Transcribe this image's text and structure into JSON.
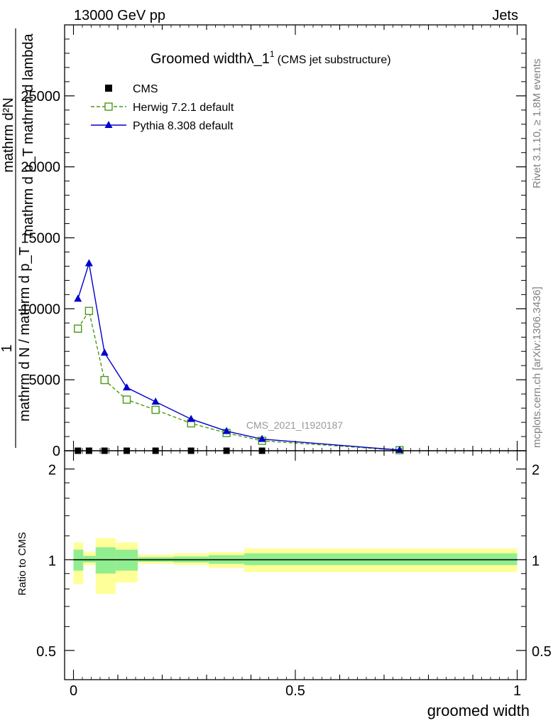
{
  "header": {
    "left_label": "13000 GeV pp",
    "right_label": "Jets"
  },
  "side_labels": {
    "rivet": "Rivet 3.1.10, ≥ 1.8M events",
    "mcplots": "mcplots.cern.ch [arXiv:1306.3436]"
  },
  "analysis_id": "CMS_2021_I1920187",
  "chart_data": [
    {
      "type": "line",
      "title": "Groomed widthλ_1",
      "title_superscript": "1",
      "subtitle": "(CMS jet substructure)",
      "xlabel": "groomed width",
      "ylabel_numerator": "1",
      "ylabel_denominator": "mathrm d N / mathrm d p_T",
      "ylabel_fraction_numerator": "mathrm d²N",
      "ylabel_fraction_denominator": "mathrm d p_T mathrm d lambda",
      "xlim": [
        -0.02,
        1.02
      ],
      "ylim": [
        0,
        30000
      ],
      "yticks": [
        0,
        5000,
        10000,
        15000,
        20000,
        25000
      ],
      "ytick_labels": [
        "0",
        "5000",
        "10000",
        "15000",
        "20000",
        "25000"
      ],
      "legend_position": "top-left",
      "x": [
        0.01,
        0.035,
        0.07,
        0.12,
        0.185,
        0.265,
        0.345,
        0.425,
        0.735
      ],
      "series": [
        {
          "name": "CMS",
          "color": "#000000",
          "marker": "square-filled",
          "values": [
            0,
            0,
            0,
            0,
            0,
            0,
            0,
            0,
            0
          ]
        },
        {
          "name": "Herwig 7.2.1 default",
          "color": "#4a9a14",
          "marker": "square-open",
          "dashed": true,
          "values": [
            8600,
            9850,
            4980,
            3600,
            2880,
            1930,
            1250,
            700,
            40
          ]
        },
        {
          "name": "Pythia 8.308 default",
          "color": "#0000cc",
          "marker": "triangle-filled",
          "dashed": false,
          "values": [
            10700,
            13200,
            6900,
            4450,
            3450,
            2230,
            1380,
            820,
            50
          ]
        }
      ]
    },
    {
      "type": "area",
      "ylabel": "Ratio to CMS",
      "xlim": [
        -0.02,
        1.02
      ],
      "ylim": [
        0.4,
        2.3
      ],
      "yticks": [
        0.5,
        1,
        2
      ],
      "ytick_labels": [
        "0.5",
        "1",
        "2"
      ],
      "xticks": [
        0,
        0.5,
        1
      ],
      "xtick_labels": [
        "0",
        "0.5",
        "1"
      ],
      "bins": [
        {
          "lo": 0.0,
          "hi": 0.022,
          "inner": [
            0.92,
            1.08
          ],
          "outer": [
            0.83,
            1.14
          ]
        },
        {
          "lo": 0.022,
          "hi": 0.05,
          "inner": [
            0.98,
            1.03
          ],
          "outer": [
            0.96,
            1.06
          ]
        },
        {
          "lo": 0.05,
          "hi": 0.095,
          "inner": [
            0.9,
            1.1
          ],
          "outer": [
            0.77,
            1.18
          ]
        },
        {
          "lo": 0.095,
          "hi": 0.145,
          "inner": [
            0.92,
            1.08
          ],
          "outer": [
            0.84,
            1.14
          ]
        },
        {
          "lo": 0.145,
          "hi": 0.225,
          "inner": [
            0.985,
            1.02
          ],
          "outer": [
            0.97,
            1.04
          ]
        },
        {
          "lo": 0.225,
          "hi": 0.305,
          "inner": [
            0.98,
            1.025
          ],
          "outer": [
            0.96,
            1.05
          ]
        },
        {
          "lo": 0.305,
          "hi": 0.385,
          "inner": [
            0.97,
            1.035
          ],
          "outer": [
            0.94,
            1.06
          ]
        },
        {
          "lo": 0.385,
          "hi": 1.0,
          "inner": [
            0.96,
            1.05
          ],
          "outer": [
            0.91,
            1.09
          ]
        }
      ],
      "inner_band_color": "#90ee90",
      "outer_band_color": "#ffff99"
    }
  ]
}
